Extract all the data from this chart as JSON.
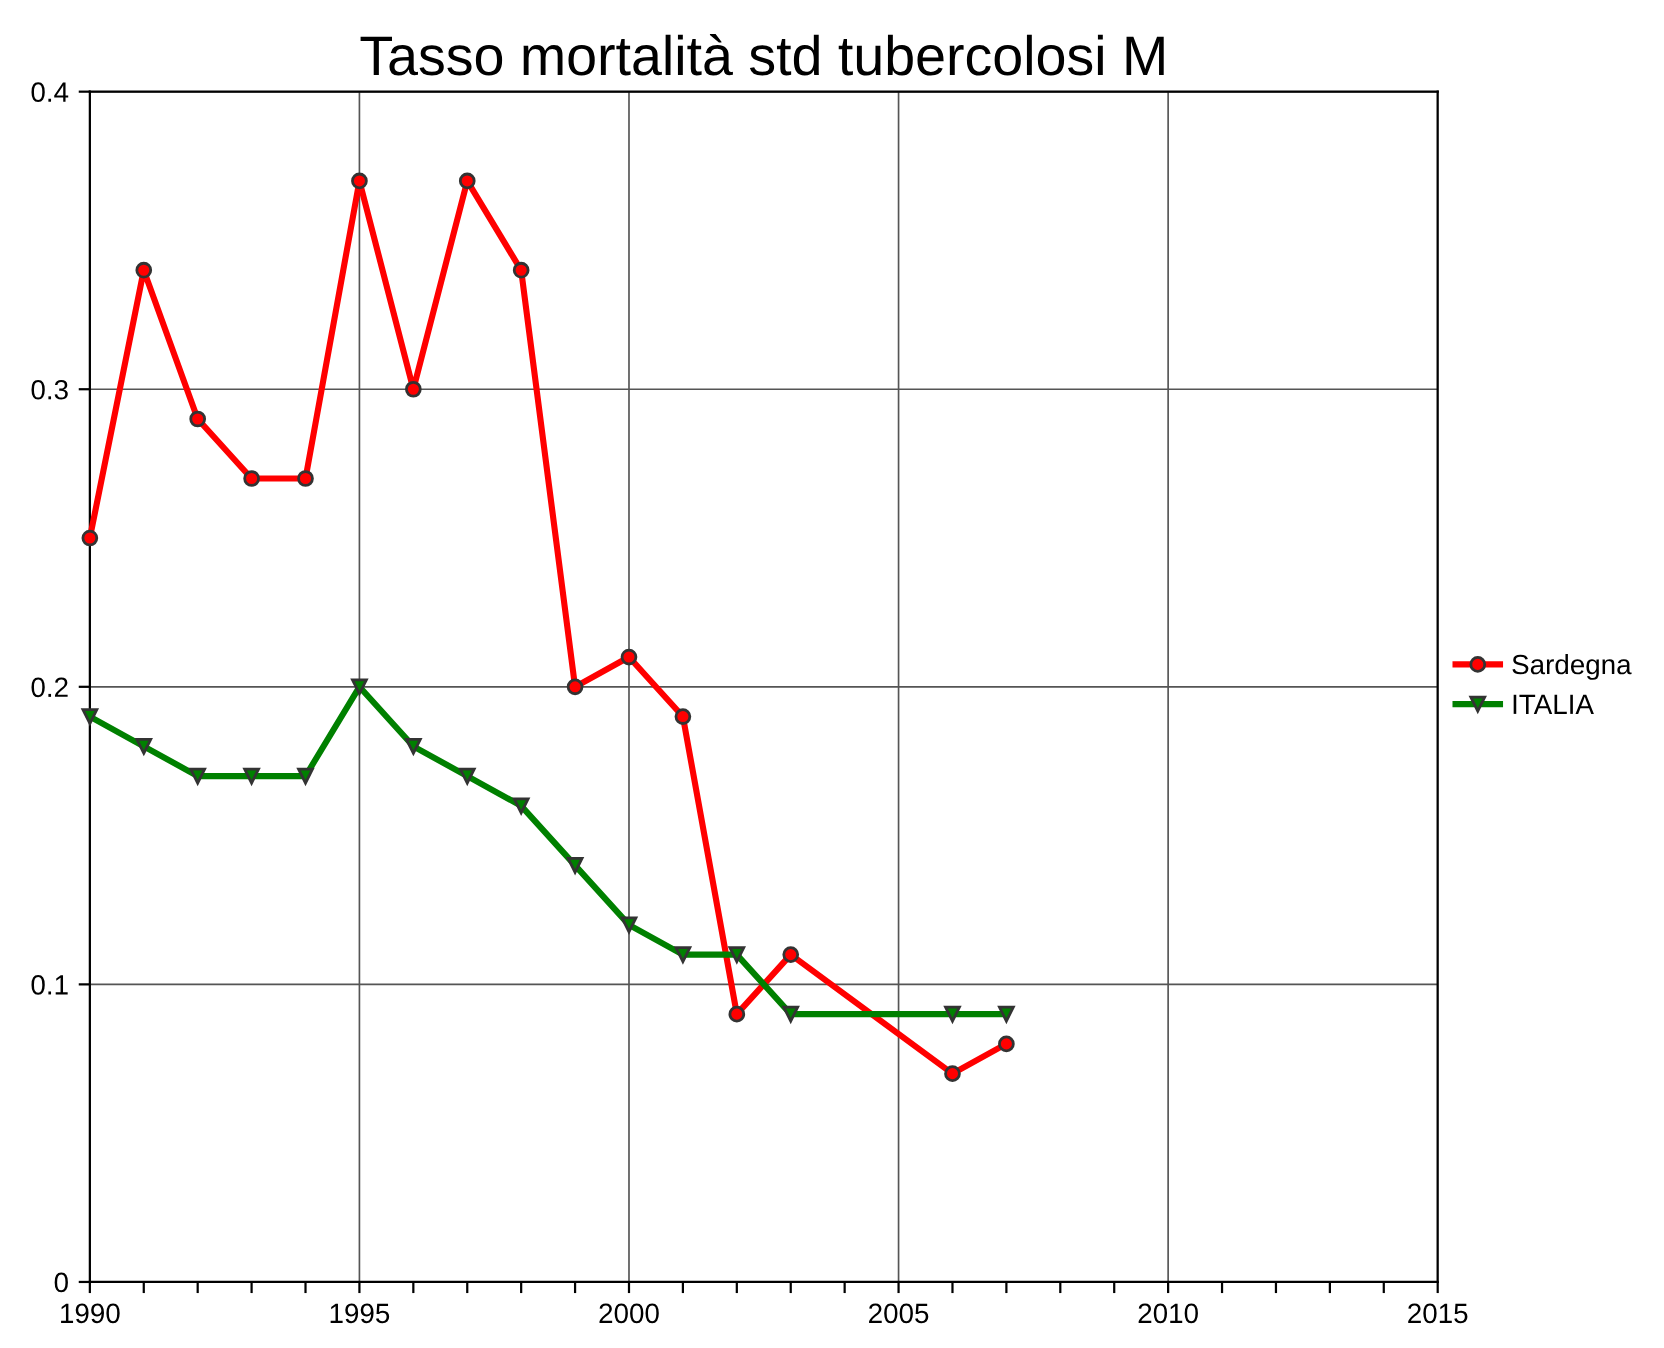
{
  "chart_data": {
    "type": "line",
    "title": "Tasso mortalità std tubercolosi M",
    "x": [
      1990,
      1991,
      1992,
      1993,
      1994,
      1995,
      1996,
      1997,
      1998,
      1999,
      2000,
      2001,
      2002,
      2003,
      2006,
      2007
    ],
    "series": [
      {
        "name": "Sardegna",
        "color": "#ff0000",
        "marker": "circle",
        "values": [
          0.25,
          0.34,
          0.29,
          0.27,
          0.27,
          0.37,
          0.3,
          0.37,
          0.34,
          0.2,
          0.21,
          0.19,
          0.09,
          0.11,
          0.07,
          0.08
        ]
      },
      {
        "name": "ITALIA",
        "color": "#008000",
        "marker": "triangle",
        "values": [
          0.19,
          0.18,
          0.17,
          0.17,
          0.17,
          0.2,
          0.18,
          0.17,
          0.16,
          0.14,
          0.12,
          0.11,
          0.11,
          0.09,
          0.09,
          0.09
        ]
      }
    ],
    "xlim": [
      1990,
      2015
    ],
    "xticks": [
      1990,
      {
        "value": 1991,
        "label": null
      },
      {
        "value": 1992,
        "label": null
      },
      {
        "value": 1993,
        "label": null
      },
      {
        "value": 1994,
        "label": null
      },
      1995,
      {
        "value": 1996,
        "label": null
      },
      {
        "value": 1997,
        "label": null
      },
      {
        "value": 1998,
        "label": null
      },
      {
        "value": 1999,
        "label": null
      },
      2000,
      {
        "value": 2001,
        "label": null
      },
      {
        "value": 2002,
        "label": null
      },
      {
        "value": 2003,
        "label": null
      },
      {
        "value": 2004,
        "label": null
      },
      2005,
      {
        "value": 2006,
        "label": null
      },
      {
        "value": 2007,
        "label": null
      },
      {
        "value": 2008,
        "label": null
      },
      {
        "value": 2009,
        "label": null
      },
      2010,
      {
        "value": 2011,
        "label": null
      },
      {
        "value": 2012,
        "label": null
      },
      {
        "value": 2013,
        "label": null
      },
      {
        "value": 2014,
        "label": null
      },
      2015
    ],
    "ylim": [
      0,
      0.4
    ],
    "yticks": [
      {
        "value": 0,
        "label": "0"
      },
      0.1,
      0.2,
      0.3,
      0.4
    ],
    "grid": true,
    "legend": "right",
    "line_style": "solid"
  }
}
